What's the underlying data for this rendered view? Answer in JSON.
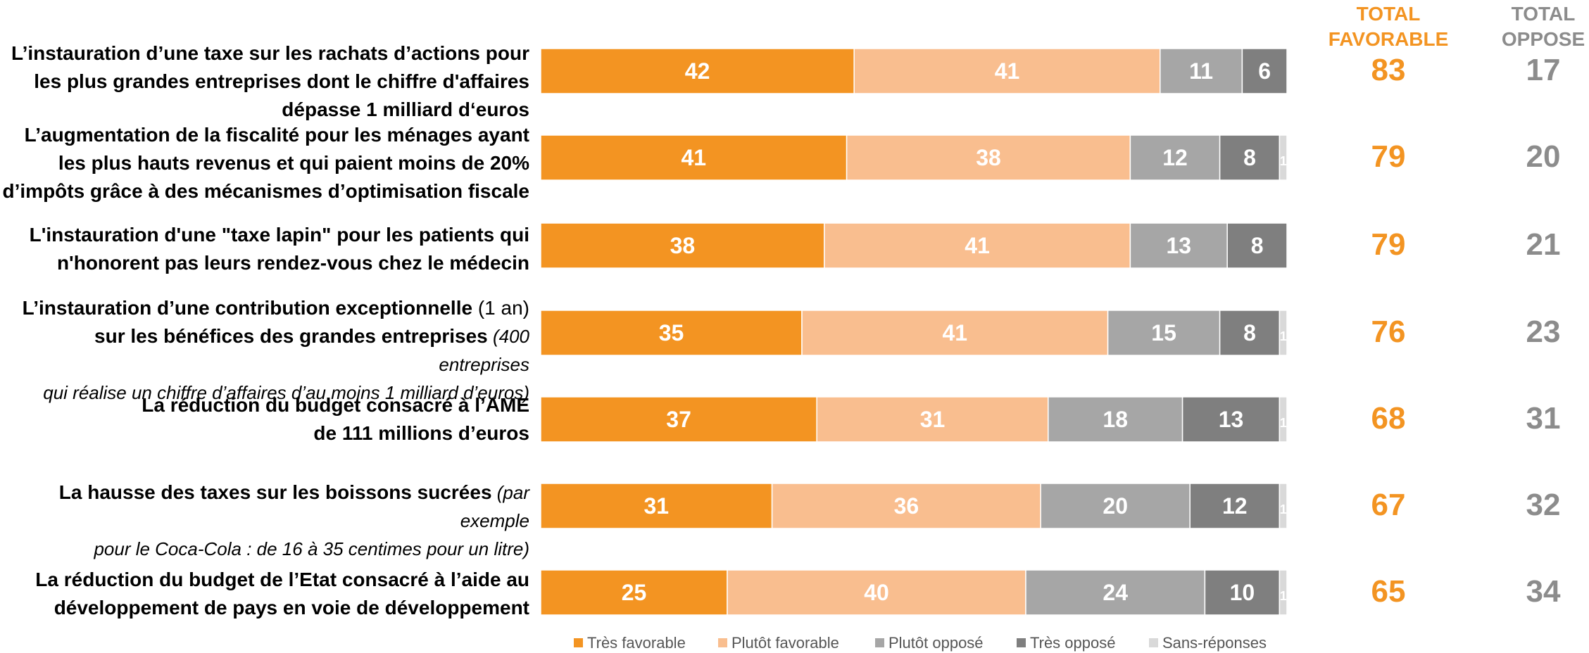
{
  "chart_data": {
    "type": "bar",
    "orientation": "horizontal-stacked",
    "categories": [
      "L’instauration d’une taxe sur les rachats d’actions pour les plus grandes entreprises dont le chiffre d'affaires dépasse 1 milliard d‘euros",
      "L’augmentation de la fiscalité pour les ménages ayant les plus hauts revenus et qui paient moins de 20% d’impôts grâce à des mécanismes d’optimisation fiscale",
      "L'instauration d'une \"taxe lapin\" pour les patients qui n'honorent pas leurs rendez-vous chez le médecin",
      "L’instauration d’une contribution exceptionnelle (1 an) sur les bénéfices des grandes entreprises (400 entreprises qui réalise un chiffre d’affaires d’au moins 1 milliard d’euros)",
      "La réduction du budget consacré à l’AME de 111 millions d’euros",
      "La hausse des taxes sur les boissons sucrées (par exemple pour le Coca-Cola : de 16 à 35 centimes pour un litre)",
      "La réduction du budget de l’Etat consacré à l’aide au développement de pays en voie de développement"
    ],
    "series": [
      {
        "name": "Très favorable",
        "color": "#F39422",
        "values": [
          42,
          41,
          38,
          35,
          37,
          31,
          25
        ]
      },
      {
        "name": "Plutôt favorable",
        "color": "#F9BE8F",
        "values": [
          41,
          38,
          41,
          41,
          31,
          36,
          40
        ]
      },
      {
        "name": "Plutôt opposé",
        "color": "#A6A6A6",
        "values": [
          11,
          12,
          13,
          15,
          18,
          20,
          24
        ]
      },
      {
        "name": "Très opposé",
        "color": "#7F7F7F",
        "values": [
          6,
          8,
          8,
          8,
          13,
          12,
          10
        ]
      },
      {
        "name": "Sans-réponses",
        "color": "#D9D9D9",
        "values": [
          0,
          1,
          0,
          1,
          1,
          1,
          1
        ]
      }
    ],
    "xlim": [
      0,
      100
    ],
    "legend_position": "bottom",
    "total_favorable": {
      "header_line1": "TOTAL",
      "header_line2": "FAVORABLE",
      "color": "#F39422",
      "values": [
        83,
        79,
        79,
        76,
        68,
        67,
        65
      ]
    },
    "total_oppose": {
      "header_line1": "TOTAL",
      "header_line2": "OPPOSE",
      "color": "#8C8C8C",
      "values": [
        17,
        20,
        21,
        23,
        31,
        32,
        34
      ]
    }
  },
  "labels": [
    {
      "line1": "L’instauration d’une taxe sur les rachats d’actions pour",
      "line2": "les plus grandes entreprises dont le chiffre d'affaires",
      "line3": "dépasse 1 milliard d‘euros"
    },
    {
      "line1": "L’augmentation de la fiscalité pour les ménages ayant",
      "line2": "les plus hauts revenus et qui paient moins de 20%",
      "line3": "d’impôts grâce à des mécanismes d’optimisation fiscale"
    },
    {
      "line1": "L'instauration d'une \"taxe lapin\" pour les patients qui",
      "line2": "n'honorent pas leurs rendez-vous chez le médecin"
    },
    {
      "line1_bold": "L’instauration d’une contribution exceptionnelle",
      "line1_plain": " (1 an)",
      "line2_bold": "sur les bénéfices des grandes entreprises",
      "line2_italic": " (400 entreprises",
      "line3_italic": "qui réalise un chiffre d’affaires d’au moins 1 milliard d’euros)"
    },
    {
      "line1": "La réduction du budget consacré à l’AME",
      "line2": "de 111 millions d’euros"
    },
    {
      "line1_bold": "La hausse des taxes sur les boissons sucrées",
      "line1_italic": " (par exemple",
      "line2_italic": "pour le Coca-Cola : de 16 à 35 centimes pour un litre)"
    },
    {
      "line1": "La réduction du budget de l’Etat consacré à l’aide au",
      "line2": "développement de pays en voie de développement"
    }
  ]
}
